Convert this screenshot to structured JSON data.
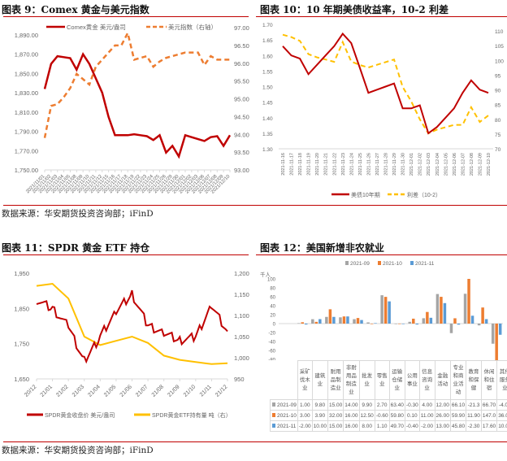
{
  "panels": [
    {
      "title": "图表 9：Comex 黄金与美元指数",
      "source": "数据来源：华安期货投资咨询部；iFinD",
      "legend": [
        "Comex黄金 美元/盎司",
        "美元指数（右轴）"
      ],
      "left_ticks": [
        "1,890.00",
        "1,870.00",
        "1,850.00",
        "1,830.00",
        "1,810.00",
        "1,790.00",
        "1,770.00",
        "1,750.00"
      ],
      "right_ticks": [
        "97.00",
        "96.50",
        "96.00",
        "95.50",
        "95.00",
        "94.50",
        "94.00",
        "93.50",
        "93.00"
      ]
    },
    {
      "title": "图表 10：10 年期美债收益率，10-2 利差",
      "legend": [
        "美债10年期",
        "利差（10-2）"
      ],
      "left_ticks": [
        "1.70",
        "1.65",
        "1.60",
        "1.55",
        "1.50",
        "1.45",
        "1.40",
        "1.35",
        "1.30"
      ],
      "right_ticks": [
        "110",
        "105",
        "100",
        "95",
        "90",
        "85",
        "80",
        "75",
        "70"
      ]
    },
    {
      "title": "图表 11：SPDR 黄金 ETF 持仓",
      "source": "数据来源：华安期货投资咨询部；iFinD",
      "legend": [
        "SPDR黄金收盘价 美元/盎司",
        "SPDR黄金ETF持有量 吨（右）"
      ],
      "left_ticks": [
        "1,950",
        "1,850",
        "1,750",
        "1,650"
      ],
      "right_ticks": [
        "1,200",
        "1,150",
        "1,100",
        "1,050",
        "1,000",
        "950"
      ],
      "x_ticks": [
        "20/12",
        "21/01",
        "21/02",
        "21/03",
        "21/04",
        "21/05",
        "21/06",
        "21/07",
        "21/08",
        "21/09",
        "21/10",
        "21/11",
        "21/12"
      ]
    },
    {
      "title": "图表 12：美国新增非农就业",
      "unit": "千人",
      "legend": [
        "2021-09",
        "2021-10",
        "2021-11"
      ],
      "y_ticks": [
        "100",
        "80",
        "60",
        "40",
        "20",
        "0",
        "-20",
        "-40",
        "-60",
        "-80",
        "-100"
      ]
    }
  ],
  "colors": {
    "red": "#c00000",
    "orange": "#ed7d31",
    "gold": "#ffc000",
    "gray": "#a5a5a5",
    "blue": "#5b9bd5",
    "rule": "#c0392b"
  },
  "chart_data": [
    {
      "type": "line",
      "title": "图表 9：Comex 黄金与美元指数",
      "x": [
        "2021/11/01",
        "2021/11/02",
        "2021/11/03",
        "2021/11/04",
        "2021/11/05",
        "2021/11/08",
        "2021/11/09",
        "2021/11/10",
        "2021/11/11",
        "2021/11/12",
        "2021/11/15",
        "2021/11/16",
        "2021/11/17",
        "2021/11/18",
        "2021/11/19",
        "2021/11/22",
        "2021/11/23",
        "2021/11/24",
        "2021/11/25",
        "2021/11/26",
        "2021/11/29",
        "2021/11/30",
        "2021/12/01",
        "2021/12/02",
        "2021/12/03",
        "2021/12/06",
        "2021/12/07",
        "2021/12/08",
        "2021/12/09",
        "2021/12/10"
      ],
      "series": [
        {
          "name": "Comex黄金 美元/盎司",
          "axis": "left",
          "values": [
            1834,
            1860,
            1868,
            1867,
            1866,
            1854,
            1870,
            1860,
            1845,
            1830,
            1805,
            1786,
            1786,
            1786,
            1787,
            1786,
            1785,
            1781,
            1786,
            1768,
            1775,
            1764,
            1786,
            1784,
            1782,
            1780,
            1784,
            1785,
            1775,
            1786
          ]
        },
        {
          "name": "美元指数（右轴）",
          "axis": "right",
          "values": [
            93.9,
            94.8,
            94.85,
            95.05,
            95.3,
            95.7,
            95.55,
            95.4,
            95.9,
            96.1,
            96.3,
            96.5,
            96.5,
            96.85,
            96.1,
            96.15,
            96.2,
            95.9,
            96.05,
            96.15,
            96.2,
            96.25,
            96.3,
            96.3,
            96.3,
            95.95,
            96.2,
            96.1,
            96.1,
            96.1
          ]
        }
      ],
      "ylim_left": [
        1750,
        1890
      ],
      "ylim_right": [
        93,
        97
      ],
      "legend_position": "top"
    },
    {
      "type": "line",
      "title": "图表 10：10 年期美债收益率，10-2 利差",
      "x": [
        "2021-11-16",
        "2021-11-17",
        "2021-11-18",
        "2021-11-19",
        "2021-11-20",
        "2021-11-21",
        "2021-11-22",
        "2021-11-23",
        "2021-11-24",
        "2021-11-25",
        "2021-11-26",
        "2021-11-27",
        "2021-11-28",
        "2021-11-29",
        "2021-11-30",
        "2021-12-01",
        "2021-12-02",
        "2021-12-03",
        "2021-12-04",
        "2021-12-05",
        "2021-12-06",
        "2021-12-07",
        "2021-12-08",
        "2021-12-09",
        "2021-12-10"
      ],
      "series": [
        {
          "name": "美债10年期",
          "axis": "left",
          "values": [
            1.63,
            1.6,
            1.59,
            1.54,
            1.57,
            1.6,
            1.63,
            1.67,
            1.64,
            1.56,
            1.48,
            1.49,
            1.5,
            1.51,
            1.43,
            1.43,
            1.44,
            1.35,
            1.37,
            1.4,
            1.43,
            1.48,
            1.52,
            1.49,
            1.48
          ]
        },
        {
          "name": "利差（10-2）",
          "axis": "right",
          "values": [
            108.7,
            107.9,
            106.6,
            102.1,
            101.0,
            100.3,
            99.5,
            106.2,
            99.6,
            98.4,
            97.6,
            98.5,
            99.4,
            100.3,
            91.0,
            86.1,
            80.0,
            75.2,
            76.5,
            77.3,
            78.1,
            78.1,
            84.1,
            79.1,
            81.3
          ]
        }
      ],
      "ylim_left": [
        1.3,
        1.7
      ],
      "ylim_right": [
        70,
        110
      ],
      "legend_position": "bottom"
    },
    {
      "type": "line",
      "title": "图表 11：SPDR 黄金 ETF 持仓",
      "x": [
        "20/12",
        "21/01",
        "21/02",
        "21/03",
        "21/04",
        "21/05",
        "21/06",
        "21/07",
        "21/08",
        "21/09",
        "21/10",
        "21/11",
        "21/12"
      ],
      "series": [
        {
          "name": "SPDR黄金收盘价 美元/盎司",
          "axis": "left",
          "values": [
            1875,
            1850,
            1800,
            1700,
            1770,
            1840,
            1890,
            1800,
            1780,
            1760,
            1770,
            1860,
            1785
          ]
        },
        {
          "name": "SPDR黄金ETF持有量 吨（右）",
          "axis": "right",
          "values": [
            1170,
            1175,
            1140,
            1050,
            1030,
            1040,
            1050,
            1035,
            1005,
            995,
            990,
            985,
            987
          ]
        }
      ],
      "ylim_left": [
        1650,
        1950
      ],
      "ylim_right": [
        950,
        1200
      ],
      "legend_position": "bottom"
    },
    {
      "type": "bar",
      "title": "图表 12：美国新增非农就业",
      "ylabel": "千人",
      "categories": [
        "采矿伐木业",
        "建筑业",
        "耐用品制造业",
        "非耐用品制造业",
        "批发业",
        "零售业",
        "运输仓储业",
        "公用事业",
        "信息咨询业",
        "金融活动",
        "专业和商业活动",
        "教育和保健",
        "休闲和住宿",
        "其他服务业",
        "政府部门"
      ],
      "series": [
        {
          "name": "2021-09",
          "values": [
            1.0,
            9.8,
            15.0,
            14.0,
            9.9,
            2.7,
            63.4,
            -0.3,
            4.0,
            12.0,
            66.1,
            -21.3,
            66.7,
            -4.0,
            -45.0
          ]
        },
        {
          "name": "2021-10",
          "values": [
            3.0,
            3.9,
            32.0,
            16.0,
            12.5,
            -0.6,
            59.8,
            0.1,
            11.0,
            26.0,
            59.9,
            11.9,
            147.0,
            36.0,
            -82.0
          ]
        },
        {
          "name": "2021-11",
          "values": [
            -2.0,
            10.0,
            15.0,
            16.0,
            8.0,
            1.1,
            49.7,
            -0.4,
            -2.0,
            13.0,
            45.8,
            -2.3,
            17.6,
            10.0,
            -25.0
          ]
        }
      ],
      "ylim": [
        -100,
        100
      ],
      "legend_position": "top"
    }
  ],
  "table12": {
    "headers": [
      "采矿伐木业",
      "建筑业",
      "耐用品制造业",
      "非耐用品制造业",
      "批发业",
      "零售业",
      "运输仓储业",
      "公用事业",
      "信息咨询业",
      "金融活动",
      "专业和商业活动",
      "教育和保健",
      "休闲和住宿",
      "其他服务业",
      "政府部门"
    ],
    "rows": [
      {
        "label": "2021-09",
        "cells": [
          "1.00",
          "9.80",
          "15.00",
          "14.00",
          "9.90",
          "2.70",
          "63.40",
          "-0.30",
          "4.00",
          "12.00",
          "66.10",
          "-21.3",
          "66.70",
          "-4.00",
          "-45.0"
        ]
      },
      {
        "label": "2021-10",
        "cells": [
          "3.00",
          "3.90",
          "32.00",
          "16.00",
          "12.50",
          "-0.60",
          "59.80",
          "0.10",
          "11.00",
          "26.00",
          "59.90",
          "11.90",
          "147.0",
          "36.00",
          "-82.0"
        ]
      },
      {
        "label": "2021-11",
        "cells": [
          "-2.00",
          "10.00",
          "15.00",
          "16.00",
          "8.00",
          "1.10",
          "49.70",
          "-0.40",
          "-2.00",
          "13.00",
          "45.80",
          "-2.30",
          "17.60",
          "10.00",
          "-25.0"
        ]
      }
    ]
  }
}
